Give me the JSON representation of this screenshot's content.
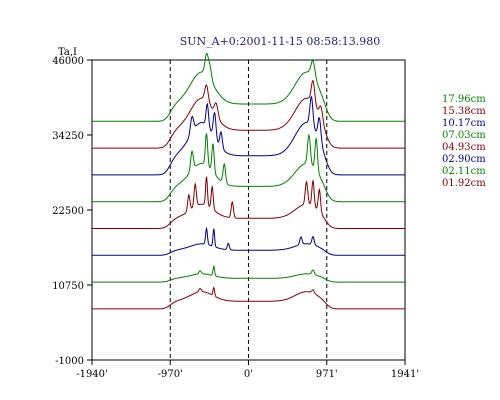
{
  "chart_data": {
    "type": "line",
    "title": "SUN_A+0:2001-11-15 08:58:13.980",
    "ylabel": "Ta,I",
    "xlabel": "",
    "xlim": [
      -1940,
      1941
    ],
    "ylim": [
      -1000,
      46000
    ],
    "x_ticks": [
      {
        "value": -1940,
        "label": "-1940'"
      },
      {
        "value": -970,
        "label": "-970'"
      },
      {
        "value": 0,
        "label": "0'"
      },
      {
        "value": 971,
        "label": "971'"
      },
      {
        "value": 1941,
        "label": "1941'"
      }
    ],
    "y_ticks": [
      {
        "value": 46000,
        "label": "46000"
      },
      {
        "value": 34250,
        "label": "34250"
      },
      {
        "value": 22500,
        "label": "22500"
      },
      {
        "value": 10750,
        "label": "10750"
      },
      {
        "value": -1000,
        "label": "-1000"
      }
    ],
    "vlines": [
      -970,
      0,
      971
    ],
    "grid": false,
    "legend_position": "right",
    "series": [
      {
        "name": "17.96cm",
        "color": "#008000",
        "baseline": 36400,
        "disk_level": 2700,
        "limb_peak": 5000,
        "spikes": [
          {
            "x": -520,
            "a": 3000,
            "w": 28
          },
          {
            "x": -480,
            "a": 2000,
            "w": 30
          },
          {
            "x": 800,
            "a": 2500,
            "w": 35
          }
        ]
      },
      {
        "name": "15.38cm",
        "color": "#800000",
        "baseline": 32200,
        "disk_level": 2800,
        "limb_peak": 5000,
        "spikes": [
          {
            "x": -520,
            "a": 2500,
            "w": 30
          },
          {
            "x": -400,
            "a": 2000,
            "w": 32
          },
          {
            "x": 800,
            "a": 3500,
            "w": 30
          },
          {
            "x": 900,
            "a": 2000,
            "w": 30
          }
        ]
      },
      {
        "name": "10.17cm",
        "color": "#000080",
        "baseline": 28000,
        "disk_level": 3000,
        "limb_peak": 5200,
        "spikes": [
          {
            "x": -700,
            "a": 2500,
            "w": 28
          },
          {
            "x": -510,
            "a": 3500,
            "w": 22
          },
          {
            "x": -420,
            "a": 4000,
            "w": 24
          },
          {
            "x": -340,
            "a": 2500,
            "w": 22
          },
          {
            "x": 780,
            "a": 4500,
            "w": 26
          },
          {
            "x": 880,
            "a": 3500,
            "w": 26
          }
        ]
      },
      {
        "name": "07.03cm",
        "color": "#008000",
        "baseline": 23800,
        "disk_level": 2400,
        "limb_peak": 3600,
        "spikes": [
          {
            "x": -700,
            "a": 3000,
            "w": 24
          },
          {
            "x": -520,
            "a": 5000,
            "w": 20
          },
          {
            "x": -440,
            "a": 4500,
            "w": 20
          },
          {
            "x": -300,
            "a": 3000,
            "w": 22
          },
          {
            "x": 750,
            "a": 4500,
            "w": 24
          },
          {
            "x": 840,
            "a": 5000,
            "w": 22
          }
        ]
      },
      {
        "name": "04.93cm",
        "color": "#800000",
        "baseline": 19600,
        "disk_level": 1600,
        "limb_peak": 2200,
        "spikes": [
          {
            "x": -740,
            "a": 2500,
            "w": 20
          },
          {
            "x": -660,
            "a": 3500,
            "w": 20
          },
          {
            "x": -520,
            "a": 4500,
            "w": 16
          },
          {
            "x": -450,
            "a": 3500,
            "w": 18
          },
          {
            "x": -200,
            "a": 2500,
            "w": 20
          },
          {
            "x": 720,
            "a": 3500,
            "w": 22
          },
          {
            "x": 800,
            "a": 4000,
            "w": 20
          },
          {
            "x": 880,
            "a": 3500,
            "w": 20
          }
        ]
      },
      {
        "name": "02.90cm",
        "color": "#000080",
        "baseline": 15400,
        "disk_level": 800,
        "limb_peak": 1000,
        "spikes": [
          {
            "x": -520,
            "a": 2500,
            "w": 16
          },
          {
            "x": -430,
            "a": 2800,
            "w": 14
          },
          {
            "x": -250,
            "a": 1000,
            "w": 18
          },
          {
            "x": 650,
            "a": 1200,
            "w": 20
          },
          {
            "x": 800,
            "a": 1300,
            "w": 20
          }
        ]
      },
      {
        "name": "02.11cm",
        "color": "#008000",
        "baseline": 11200,
        "disk_level": 600,
        "limb_peak": 700,
        "spikes": [
          {
            "x": -430,
            "a": 1500,
            "w": 14
          },
          {
            "x": -600,
            "a": 500,
            "w": 20
          },
          {
            "x": 800,
            "a": 700,
            "w": 22
          }
        ]
      },
      {
        "name": "01.92cm",
        "color": "#800000",
        "baseline": 7000,
        "disk_level": 1200,
        "limb_peak": 1500,
        "spikes": [
          {
            "x": -430,
            "a": 1300,
            "w": 14
          },
          {
            "x": -600,
            "a": 500,
            "w": 22
          },
          {
            "x": 800,
            "a": 500,
            "w": 22
          }
        ]
      }
    ]
  }
}
